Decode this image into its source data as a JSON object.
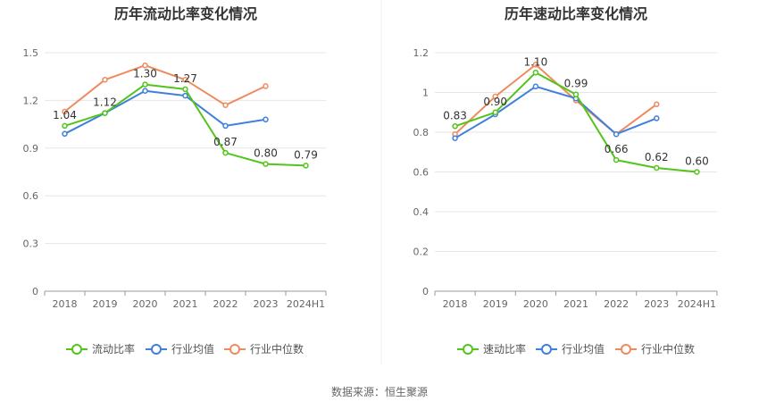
{
  "source_text": "数据来源：恒生聚源",
  "colors": {
    "primary": "#52c41a",
    "industry_avg": "#3f7fdd",
    "industry_median": "#f08a5d",
    "grid": "#e6e6e6",
    "axis": "#999999"
  },
  "chart_data": [
    {
      "type": "line",
      "title": "历年流动比率变化情况",
      "categories": [
        "2018",
        "2019",
        "2020",
        "2021",
        "2022",
        "2023",
        "2024H1"
      ],
      "ylim": [
        0,
        1.5
      ],
      "yticks": [
        "0",
        "0.3",
        "0.6",
        "0.9",
        "1.2",
        "1.5"
      ],
      "xlabel": "",
      "ylabel": "",
      "grid": true,
      "legend_position": "bottom",
      "series": [
        {
          "name": "流动比率",
          "values": [
            1.04,
            1.12,
            1.3,
            1.27,
            0.87,
            0.8,
            0.79
          ],
          "labels": [
            "1.04",
            "1.12",
            "1.30",
            "1.27",
            "0.87",
            "0.80",
            "0.79"
          ]
        },
        {
          "name": "行业均值",
          "values": [
            0.99,
            1.12,
            1.26,
            1.23,
            1.04,
            1.08,
            null
          ]
        },
        {
          "name": "行业中位数",
          "values": [
            1.13,
            1.33,
            1.42,
            1.33,
            1.17,
            1.29,
            null
          ]
        }
      ]
    },
    {
      "type": "line",
      "title": "历年速动比率变化情况",
      "categories": [
        "2018",
        "2019",
        "2020",
        "2021",
        "2022",
        "2023",
        "2024H1"
      ],
      "ylim": [
        0,
        1.2
      ],
      "yticks": [
        "0",
        "0.2",
        "0.4",
        "0.6",
        "0.8",
        "1",
        "1.2"
      ],
      "xlabel": "",
      "ylabel": "",
      "grid": true,
      "legend_position": "bottom",
      "series": [
        {
          "name": "速动比率",
          "values": [
            0.83,
            0.9,
            1.1,
            0.99,
            0.66,
            0.62,
            0.6
          ],
          "labels": [
            "0.83",
            "0.90",
            "1.10",
            "0.99",
            "0.66",
            "0.62",
            "0.60"
          ]
        },
        {
          "name": "行业均值",
          "values": [
            0.77,
            0.89,
            1.03,
            0.97,
            0.79,
            0.87,
            null
          ]
        },
        {
          "name": "行业中位数",
          "values": [
            0.79,
            0.98,
            1.14,
            0.96,
            0.79,
            0.94,
            null
          ]
        }
      ]
    }
  ]
}
